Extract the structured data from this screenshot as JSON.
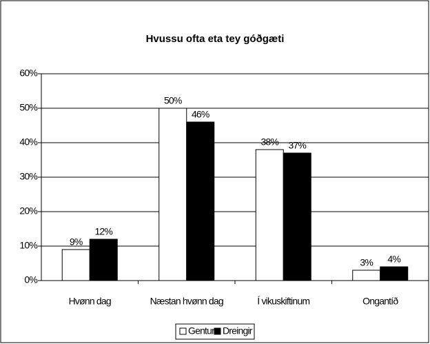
{
  "chart_data": {
    "type": "bar",
    "title": "Hvussu ofta eta tey góðgæti",
    "categories": [
      "Hvønn dag",
      "Næstan hvønn dag",
      "Í vikuskiftinum",
      "Ongantíð"
    ],
    "series": [
      {
        "name": "Gentur",
        "color": "#ffffff",
        "values": [
          9,
          50,
          38,
          3
        ],
        "value_labels": [
          "9%",
          "50%",
          "38%",
          "3%"
        ]
      },
      {
        "name": "Dreingir",
        "color": "#000000",
        "values": [
          12,
          46,
          37,
          4
        ],
        "value_labels": [
          "12%",
          "46%",
          "37%",
          "4%"
        ]
      }
    ],
    "ylim": [
      0,
      60
    ],
    "yticks": [
      {
        "value": 0,
        "label": "0%"
      },
      {
        "value": 10,
        "label": "10%"
      },
      {
        "value": 20,
        "label": "20%"
      },
      {
        "value": 30,
        "label": "30%"
      },
      {
        "value": 40,
        "label": "40%"
      },
      {
        "value": 50,
        "label": "50%"
      },
      {
        "value": 60,
        "label": "60%"
      }
    ],
    "grid": true,
    "legend": "bottom"
  }
}
